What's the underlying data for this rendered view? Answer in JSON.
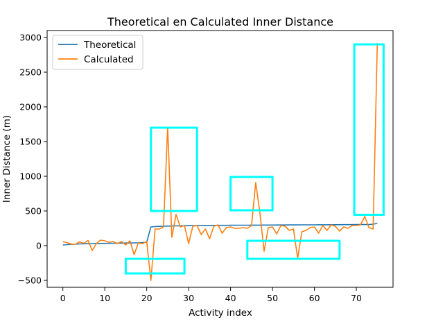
{
  "chart_data": {
    "type": "line",
    "title": "Theoretical en Calculated Inner Distance",
    "xlabel": "Activity index",
    "ylabel": "Inner Distance (m)",
    "xlim": [
      -3.75,
      78.75
    ],
    "ylim": [
      -600,
      3100
    ],
    "xticks": [
      0,
      10,
      20,
      30,
      40,
      50,
      60,
      70
    ],
    "yticks": [
      -500,
      0,
      500,
      1000,
      1500,
      2000,
      2500,
      3000
    ],
    "legend_position": "top-left",
    "series": [
      {
        "name": "Theoretical",
        "color": "#1f77b4",
        "x": [
          0,
          1,
          2,
          3,
          4,
          5,
          6,
          7,
          8,
          9,
          10,
          11,
          12,
          13,
          14,
          15,
          16,
          17,
          18,
          19,
          20,
          21,
          22,
          23,
          24,
          25,
          26,
          27,
          28,
          29,
          30,
          31,
          32,
          33,
          34,
          35,
          36,
          37,
          38,
          39,
          40,
          41,
          42,
          43,
          44,
          45,
          46,
          47,
          48,
          49,
          50,
          51,
          52,
          53,
          54,
          55,
          56,
          57,
          58,
          59,
          60,
          61,
          62,
          63,
          64,
          65,
          66,
          67,
          68,
          69,
          70,
          71,
          72,
          73,
          74,
          75
        ],
        "y": [
          10,
          15,
          20,
          22,
          25,
          27,
          28,
          30,
          31,
          32,
          33,
          34,
          35,
          36,
          37,
          38,
          39,
          40,
          41,
          45,
          50,
          270,
          275,
          278,
          280,
          282,
          284,
          285,
          286,
          287,
          288,
          289,
          290,
          290,
          291,
          291,
          292,
          292,
          293,
          293,
          294,
          294,
          295,
          295,
          295,
          296,
          296,
          296,
          297,
          297,
          297,
          298,
          298,
          298,
          299,
          299,
          299,
          300,
          300,
          300,
          300,
          301,
          301,
          301,
          302,
          302,
          302,
          303,
          303,
          303,
          304,
          304,
          305,
          305,
          310,
          320
        ]
      },
      {
        "name": "Calculated",
        "color": "#ff7f0e",
        "x": [
          0,
          1,
          2,
          3,
          4,
          5,
          6,
          7,
          8,
          9,
          10,
          11,
          12,
          13,
          14,
          15,
          16,
          17,
          18,
          19,
          20,
          21,
          22,
          23,
          24,
          25,
          26,
          27,
          28,
          29,
          30,
          31,
          32,
          33,
          34,
          35,
          36,
          37,
          38,
          39,
          40,
          41,
          42,
          43,
          44,
          45,
          46,
          47,
          48,
          49,
          50,
          51,
          52,
          53,
          54,
          55,
          56,
          57,
          58,
          59,
          60,
          61,
          62,
          63,
          64,
          65,
          66,
          67,
          68,
          69,
          70,
          71,
          72,
          73,
          74,
          75
        ],
        "y": [
          55,
          45,
          25,
          20,
          55,
          35,
          75,
          -70,
          30,
          80,
          70,
          50,
          60,
          30,
          60,
          10,
          70,
          -130,
          40,
          30,
          60,
          -500,
          240,
          240,
          270,
          1710,
          120,
          450,
          270,
          290,
          30,
          280,
          290,
          160,
          240,
          100,
          280,
          300,
          180,
          260,
          270,
          250,
          250,
          260,
          250,
          290,
          910,
          470,
          -80,
          260,
          270,
          170,
          290,
          280,
          220,
          240,
          -180,
          200,
          220,
          260,
          270,
          180,
          290,
          220,
          300,
          280,
          210,
          270,
          250,
          290,
          290,
          300,
          420,
          260,
          240,
          2920
        ]
      }
    ],
    "annotations": [
      {
        "type": "box",
        "x0": 15,
        "x1": 29,
        "y0": -400,
        "y1": -190,
        "color": "#00ffff"
      },
      {
        "type": "box",
        "x0": 21,
        "x1": 32,
        "y0": 500,
        "y1": 1700,
        "color": "#00ffff"
      },
      {
        "type": "box",
        "x0": 40,
        "x1": 50,
        "y0": 510,
        "y1": 990,
        "color": "#00ffff"
      },
      {
        "type": "box",
        "x0": 44,
        "x1": 66,
        "y0": -190,
        "y1": 70,
        "color": "#00ffff"
      },
      {
        "type": "box",
        "x0": 69.5,
        "x1": 76.5,
        "y0": 445,
        "y1": 2900,
        "color": "#00ffff"
      }
    ]
  }
}
